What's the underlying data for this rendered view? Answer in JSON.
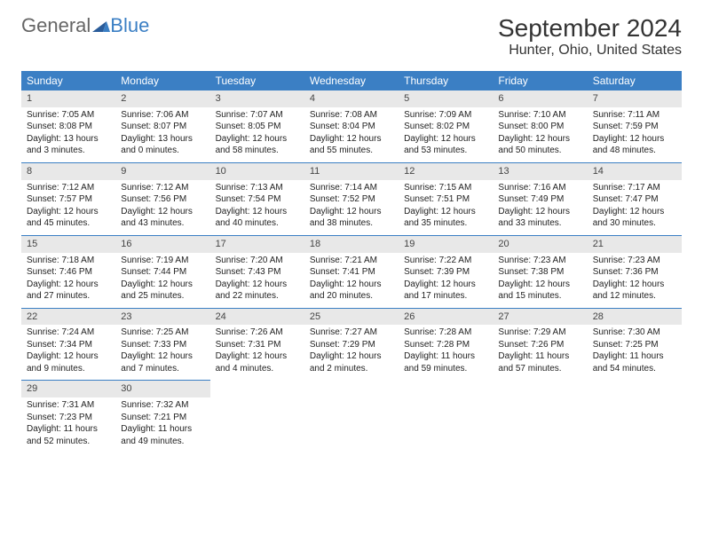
{
  "logo": {
    "text1": "General",
    "text2": "Blue"
  },
  "title": "September 2024",
  "location": "Hunter, Ohio, United States",
  "header_bg": "#3b7fc4",
  "daynum_bg": "#e8e8e8",
  "divider_color": "#3b7fc4",
  "font_family": "Arial",
  "dayHeaders": [
    "Sunday",
    "Monday",
    "Tuesday",
    "Wednesday",
    "Thursday",
    "Friday",
    "Saturday"
  ],
  "weeks": [
    [
      {
        "n": "1",
        "sr": "Sunrise: 7:05 AM",
        "ss": "Sunset: 8:08 PM",
        "d1": "Daylight: 13 hours",
        "d2": "and 3 minutes."
      },
      {
        "n": "2",
        "sr": "Sunrise: 7:06 AM",
        "ss": "Sunset: 8:07 PM",
        "d1": "Daylight: 13 hours",
        "d2": "and 0 minutes."
      },
      {
        "n": "3",
        "sr": "Sunrise: 7:07 AM",
        "ss": "Sunset: 8:05 PM",
        "d1": "Daylight: 12 hours",
        "d2": "and 58 minutes."
      },
      {
        "n": "4",
        "sr": "Sunrise: 7:08 AM",
        "ss": "Sunset: 8:04 PM",
        "d1": "Daylight: 12 hours",
        "d2": "and 55 minutes."
      },
      {
        "n": "5",
        "sr": "Sunrise: 7:09 AM",
        "ss": "Sunset: 8:02 PM",
        "d1": "Daylight: 12 hours",
        "d2": "and 53 minutes."
      },
      {
        "n": "6",
        "sr": "Sunrise: 7:10 AM",
        "ss": "Sunset: 8:00 PM",
        "d1": "Daylight: 12 hours",
        "d2": "and 50 minutes."
      },
      {
        "n": "7",
        "sr": "Sunrise: 7:11 AM",
        "ss": "Sunset: 7:59 PM",
        "d1": "Daylight: 12 hours",
        "d2": "and 48 minutes."
      }
    ],
    [
      {
        "n": "8",
        "sr": "Sunrise: 7:12 AM",
        "ss": "Sunset: 7:57 PM",
        "d1": "Daylight: 12 hours",
        "d2": "and 45 minutes."
      },
      {
        "n": "9",
        "sr": "Sunrise: 7:12 AM",
        "ss": "Sunset: 7:56 PM",
        "d1": "Daylight: 12 hours",
        "d2": "and 43 minutes."
      },
      {
        "n": "10",
        "sr": "Sunrise: 7:13 AM",
        "ss": "Sunset: 7:54 PM",
        "d1": "Daylight: 12 hours",
        "d2": "and 40 minutes."
      },
      {
        "n": "11",
        "sr": "Sunrise: 7:14 AM",
        "ss": "Sunset: 7:52 PM",
        "d1": "Daylight: 12 hours",
        "d2": "and 38 minutes."
      },
      {
        "n": "12",
        "sr": "Sunrise: 7:15 AM",
        "ss": "Sunset: 7:51 PM",
        "d1": "Daylight: 12 hours",
        "d2": "and 35 minutes."
      },
      {
        "n": "13",
        "sr": "Sunrise: 7:16 AM",
        "ss": "Sunset: 7:49 PM",
        "d1": "Daylight: 12 hours",
        "d2": "and 33 minutes."
      },
      {
        "n": "14",
        "sr": "Sunrise: 7:17 AM",
        "ss": "Sunset: 7:47 PM",
        "d1": "Daylight: 12 hours",
        "d2": "and 30 minutes."
      }
    ],
    [
      {
        "n": "15",
        "sr": "Sunrise: 7:18 AM",
        "ss": "Sunset: 7:46 PM",
        "d1": "Daylight: 12 hours",
        "d2": "and 27 minutes."
      },
      {
        "n": "16",
        "sr": "Sunrise: 7:19 AM",
        "ss": "Sunset: 7:44 PM",
        "d1": "Daylight: 12 hours",
        "d2": "and 25 minutes."
      },
      {
        "n": "17",
        "sr": "Sunrise: 7:20 AM",
        "ss": "Sunset: 7:43 PM",
        "d1": "Daylight: 12 hours",
        "d2": "and 22 minutes."
      },
      {
        "n": "18",
        "sr": "Sunrise: 7:21 AM",
        "ss": "Sunset: 7:41 PM",
        "d1": "Daylight: 12 hours",
        "d2": "and 20 minutes."
      },
      {
        "n": "19",
        "sr": "Sunrise: 7:22 AM",
        "ss": "Sunset: 7:39 PM",
        "d1": "Daylight: 12 hours",
        "d2": "and 17 minutes."
      },
      {
        "n": "20",
        "sr": "Sunrise: 7:23 AM",
        "ss": "Sunset: 7:38 PM",
        "d1": "Daylight: 12 hours",
        "d2": "and 15 minutes."
      },
      {
        "n": "21",
        "sr": "Sunrise: 7:23 AM",
        "ss": "Sunset: 7:36 PM",
        "d1": "Daylight: 12 hours",
        "d2": "and 12 minutes."
      }
    ],
    [
      {
        "n": "22",
        "sr": "Sunrise: 7:24 AM",
        "ss": "Sunset: 7:34 PM",
        "d1": "Daylight: 12 hours",
        "d2": "and 9 minutes."
      },
      {
        "n": "23",
        "sr": "Sunrise: 7:25 AM",
        "ss": "Sunset: 7:33 PM",
        "d1": "Daylight: 12 hours",
        "d2": "and 7 minutes."
      },
      {
        "n": "24",
        "sr": "Sunrise: 7:26 AM",
        "ss": "Sunset: 7:31 PM",
        "d1": "Daylight: 12 hours",
        "d2": "and 4 minutes."
      },
      {
        "n": "25",
        "sr": "Sunrise: 7:27 AM",
        "ss": "Sunset: 7:29 PM",
        "d1": "Daylight: 12 hours",
        "d2": "and 2 minutes."
      },
      {
        "n": "26",
        "sr": "Sunrise: 7:28 AM",
        "ss": "Sunset: 7:28 PM",
        "d1": "Daylight: 11 hours",
        "d2": "and 59 minutes."
      },
      {
        "n": "27",
        "sr": "Sunrise: 7:29 AM",
        "ss": "Sunset: 7:26 PM",
        "d1": "Daylight: 11 hours",
        "d2": "and 57 minutes."
      },
      {
        "n": "28",
        "sr": "Sunrise: 7:30 AM",
        "ss": "Sunset: 7:25 PM",
        "d1": "Daylight: 11 hours",
        "d2": "and 54 minutes."
      }
    ],
    [
      {
        "n": "29",
        "sr": "Sunrise: 7:31 AM",
        "ss": "Sunset: 7:23 PM",
        "d1": "Daylight: 11 hours",
        "d2": "and 52 minutes."
      },
      {
        "n": "30",
        "sr": "Sunrise: 7:32 AM",
        "ss": "Sunset: 7:21 PM",
        "d1": "Daylight: 11 hours",
        "d2": "and 49 minutes."
      },
      null,
      null,
      null,
      null,
      null
    ]
  ]
}
